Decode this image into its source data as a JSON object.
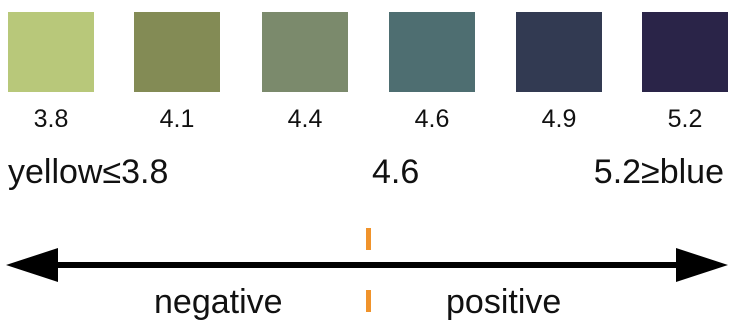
{
  "swatches": [
    {
      "label": "3.8",
      "color": "#b8c87a"
    },
    {
      "label": "4.1",
      "color": "#838b55"
    },
    {
      "label": "4.4",
      "color": "#7b8a6c"
    },
    {
      "label": "4.6",
      "color": "#4e6e71"
    },
    {
      "label": "4.9",
      "color": "#323a52"
    },
    {
      "label": "5.2",
      "color": "#2a2448"
    }
  ],
  "range": {
    "low": "yellow≤3.8",
    "mid": "4.6",
    "high": "5.2≥blue"
  },
  "direction": {
    "negative": "negative",
    "positive": "positive"
  },
  "colors": {
    "marker": "#f0932b",
    "arrow": "#000000"
  }
}
